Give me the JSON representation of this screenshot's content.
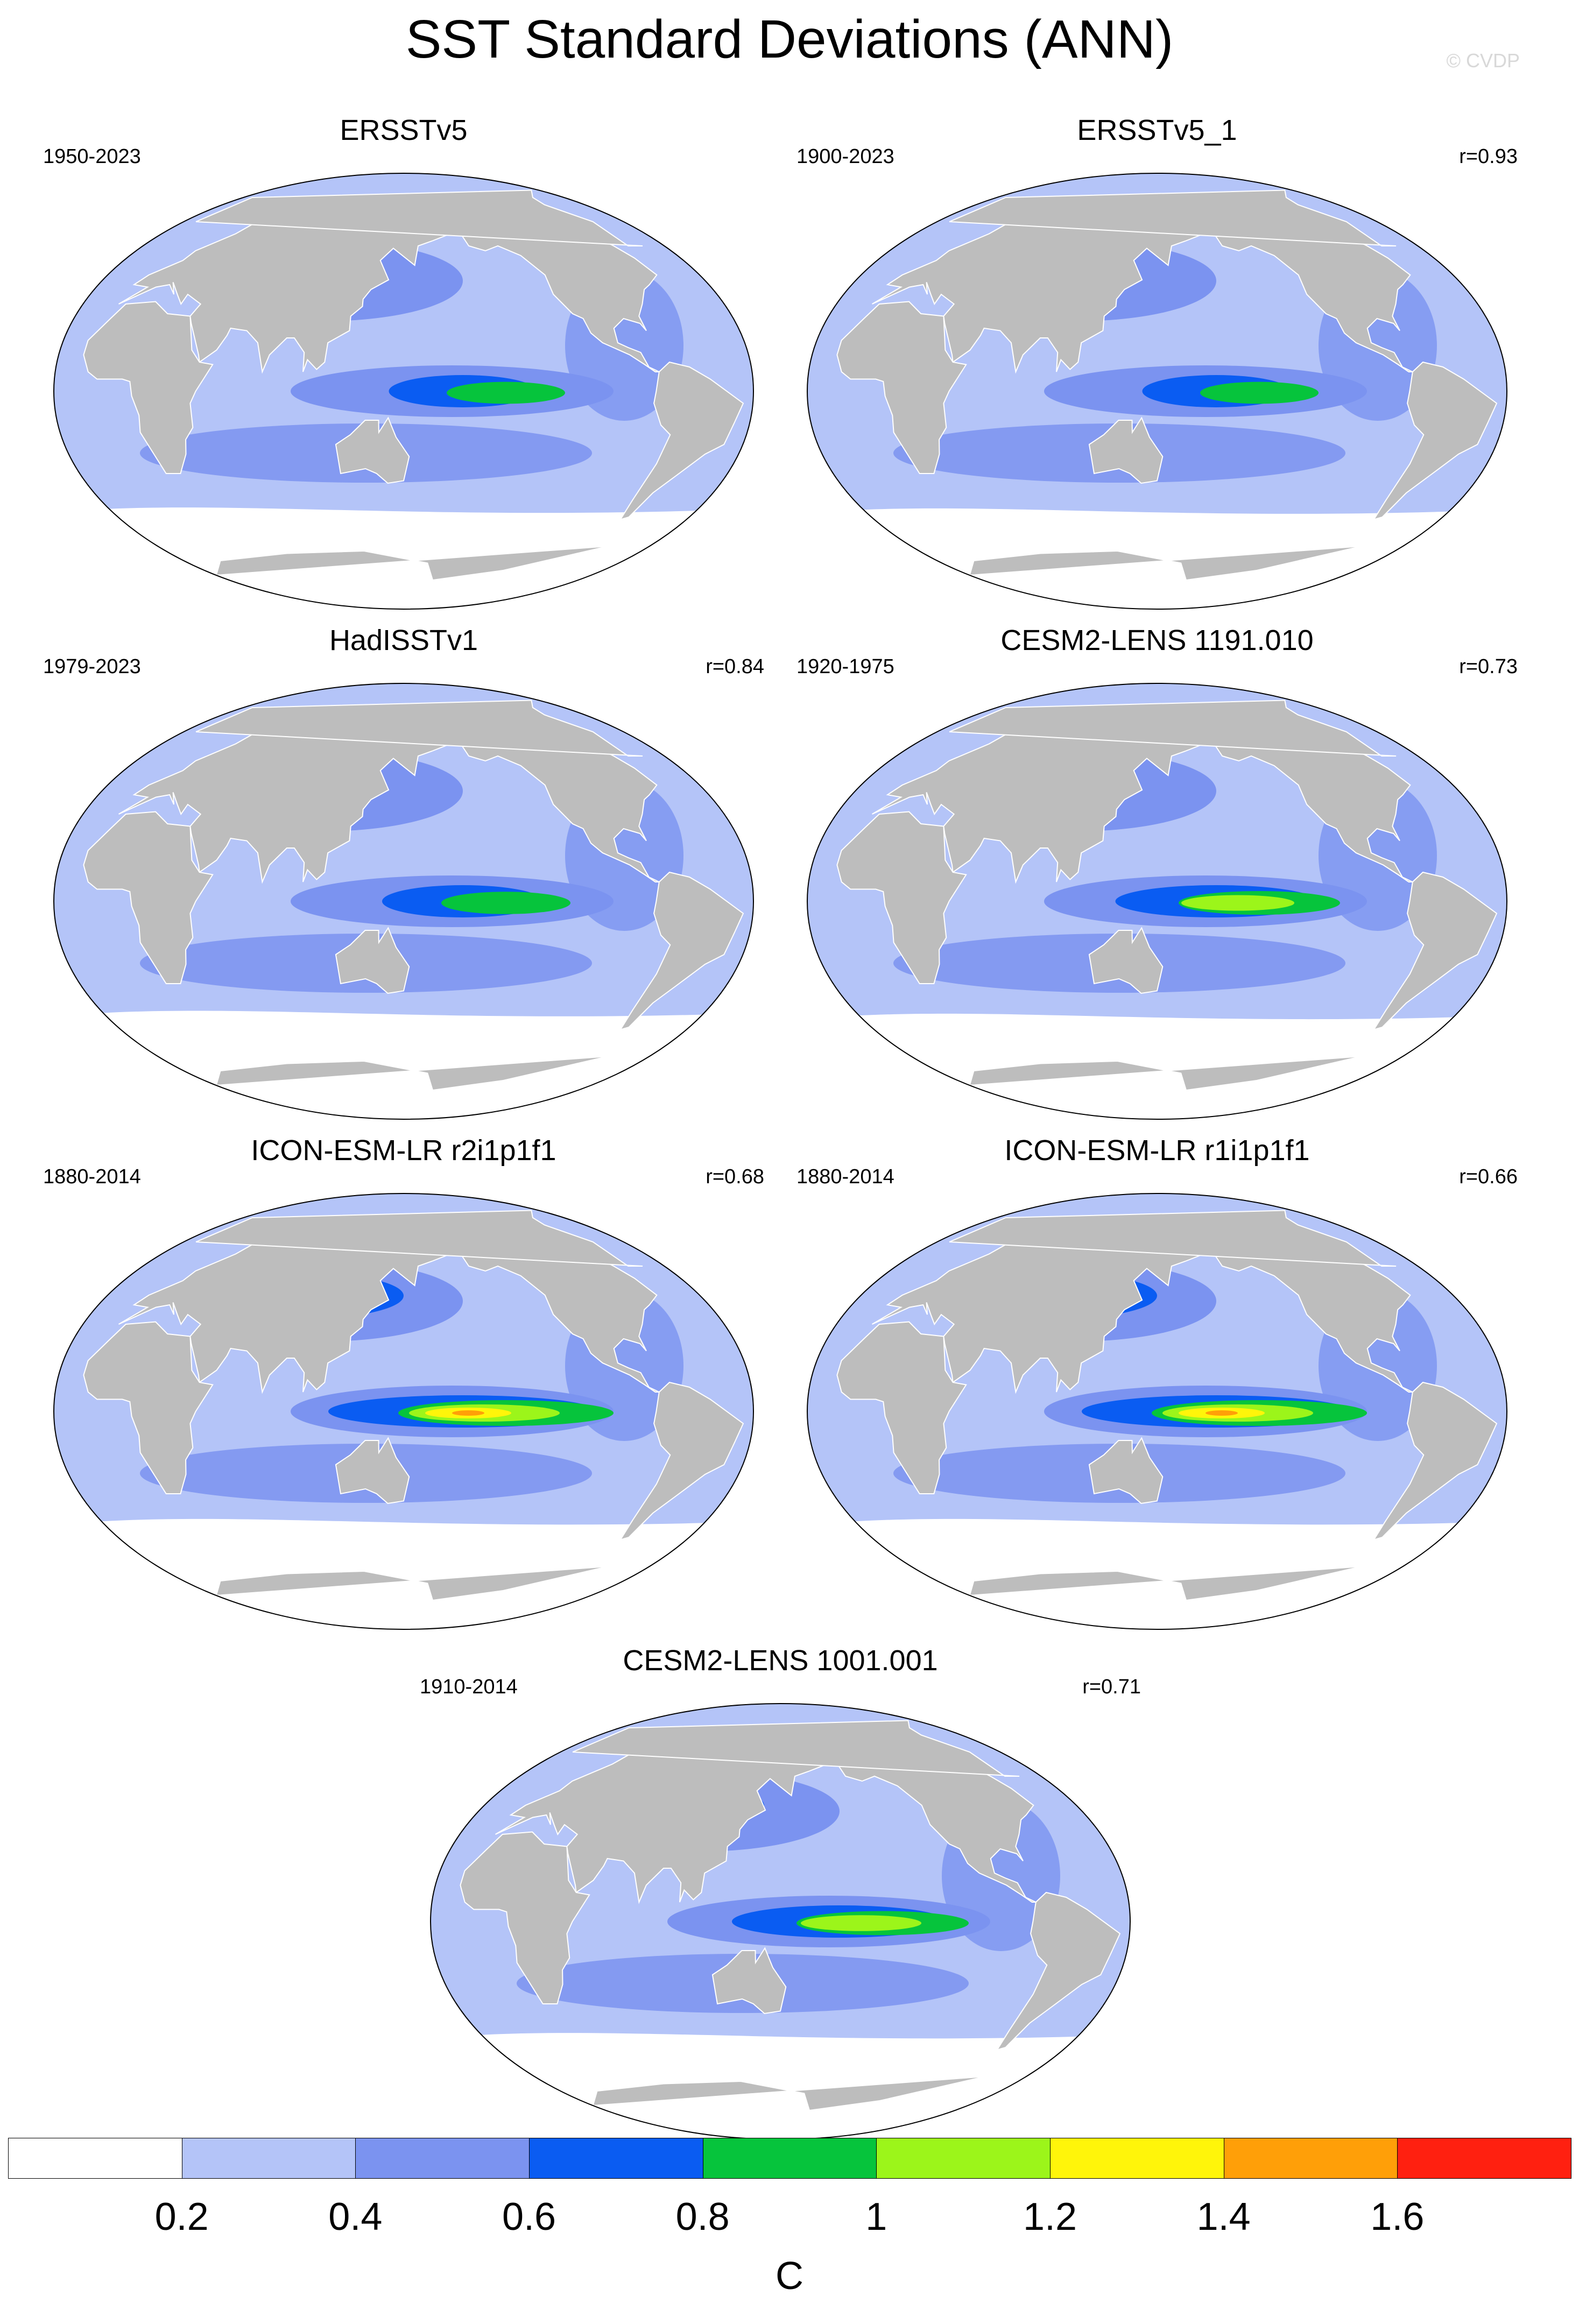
{
  "title": "SST Standard Deviations (ANN)",
  "credit": "© CVDP",
  "colors": {
    "land": "#bdbdbd",
    "levels": [
      "#ffffff",
      "#b4c4f8",
      "#7b93f0",
      "#0a5cf2",
      "#06c43c",
      "#9cf51a",
      "#fff50a",
      "#ff9f08",
      "#ff2010"
    ]
  },
  "panels": [
    {
      "title": "ERSSTv5",
      "period": "1950-2023",
      "corr": "",
      "intensity": 0.55,
      "white_south": 0.25
    },
    {
      "title": "ERSSTv5_1",
      "period": "1900-2023",
      "corr": "r=0.93",
      "intensity": 0.55,
      "white_south": 0.2
    },
    {
      "title": "HadISSTv1",
      "period": "1979-2023",
      "corr": "r=0.84",
      "intensity": 0.6,
      "white_south": 0.6
    },
    {
      "title": "CESM2-LENS 1191.010",
      "period": "1920-1975",
      "corr": "r=0.73",
      "intensity": 0.75,
      "white_south": 0.45
    },
    {
      "title": "ICON-ESM-LR r2i1p1f1",
      "period": "1880-2014",
      "corr": "r=0.68",
      "intensity": 1.0,
      "white_south": 0.7
    },
    {
      "title": "ICON-ESM-LR r1i1p1f1",
      "period": "1880-2014",
      "corr": "r=0.66",
      "intensity": 1.0,
      "white_south": 0.7
    },
    {
      "title": "CESM2-LENS 1001.001",
      "period": "1910-2014",
      "corr": "r=0.71",
      "intensity": 0.8,
      "white_south": 0.5
    }
  ],
  "colorbar": {
    "labels": [
      "0.2",
      "0.4",
      "0.6",
      "0.8",
      "1",
      "1.2",
      "1.4",
      "1.6"
    ],
    "unit": "C"
  }
}
